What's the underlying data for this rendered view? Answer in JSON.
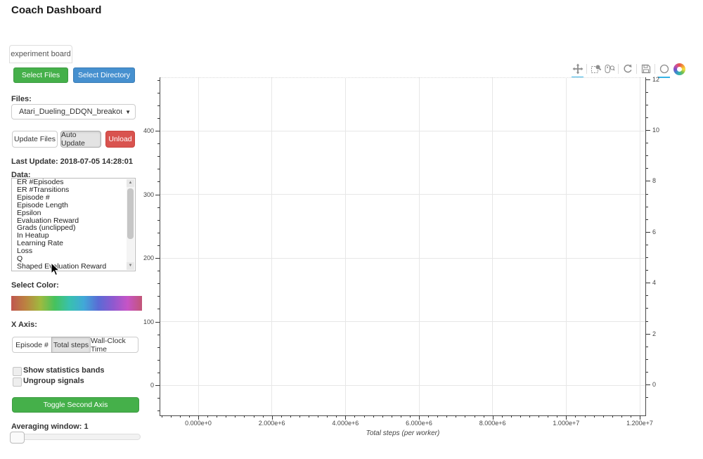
{
  "title": "Coach Dashboard",
  "tab": {
    "label": "experiment board"
  },
  "sidebar": {
    "select_files": "Select Files",
    "select_directory": "Select Directory",
    "files_label": "Files:",
    "files_selected": "Atari_Dueling_DDQN_breakout_new",
    "update_files": "Update Files",
    "auto_update": "Auto Update",
    "unload": "Unload",
    "last_update": "Last Update: 2018-07-05 14:28:01",
    "data_label": "Data:",
    "data_items": [
      "ER #Episodes",
      "ER #Transitions",
      "Episode #",
      "Episode Length",
      "Epsilon",
      "Evaluation Reward",
      "Grads (unclipped)",
      "In Heatup",
      "Learning Rate",
      "Loss",
      "Q",
      "Shaped Evaluation Reward"
    ],
    "select_color_label": "Select Color:",
    "gradient_colors": [
      "#c0574f",
      "#bb8340",
      "#9fba3f",
      "#46c25d",
      "#38c1ae",
      "#41a8d8",
      "#5a6bd5",
      "#8e59cf",
      "#c654c6",
      "#c25577"
    ],
    "x_axis_label": "X Axis:",
    "x_axis_options": [
      "Episode #",
      "Total steps",
      "Wall-Clock Time"
    ],
    "x_axis_selected": "Total steps",
    "show_stats_label": "Show statistics bands",
    "show_stats_checked": false,
    "ungroup_label": "Ungroup signals",
    "ungroup_checked": false,
    "toggle_second_axis": "Toggle Second Axis",
    "averaging_label": "Averaging window:",
    "averaging_value": "1"
  },
  "toolbar": {
    "tools": [
      {
        "name": "pan",
        "active": true
      },
      {
        "name": "box-zoom",
        "active": false
      },
      {
        "name": "wheel-zoom",
        "active": false
      },
      {
        "name": "reset",
        "active": false
      },
      {
        "name": "save",
        "active": false
      },
      {
        "name": "hover",
        "active": true
      }
    ],
    "active_color": "#35b3e6"
  },
  "chart_data": {
    "type": "line",
    "title": "",
    "series": [],
    "xlabel": "Total steps (per worker)",
    "x_ticks": {
      "values": [
        0,
        2000000,
        4000000,
        6000000,
        8000000,
        10000000,
        12000000
      ],
      "labels": [
        "0.000e+0",
        "2.000e+6",
        "4.000e+6",
        "6.000e+6",
        "8.000e+6",
        "1.000e+7",
        "1.200e+7"
      ]
    },
    "y_left_ticks": [
      0,
      100,
      200,
      300,
      400
    ],
    "y_right_ticks": [
      0,
      2,
      4,
      6,
      8,
      10,
      12
    ],
    "x_range": [
      -1030000,
      12150000
    ],
    "y_left_range": [
      -47,
      484
    ],
    "y_right_range": [
      -0.75,
      12.1
    ],
    "grid": true,
    "legend": null
  }
}
